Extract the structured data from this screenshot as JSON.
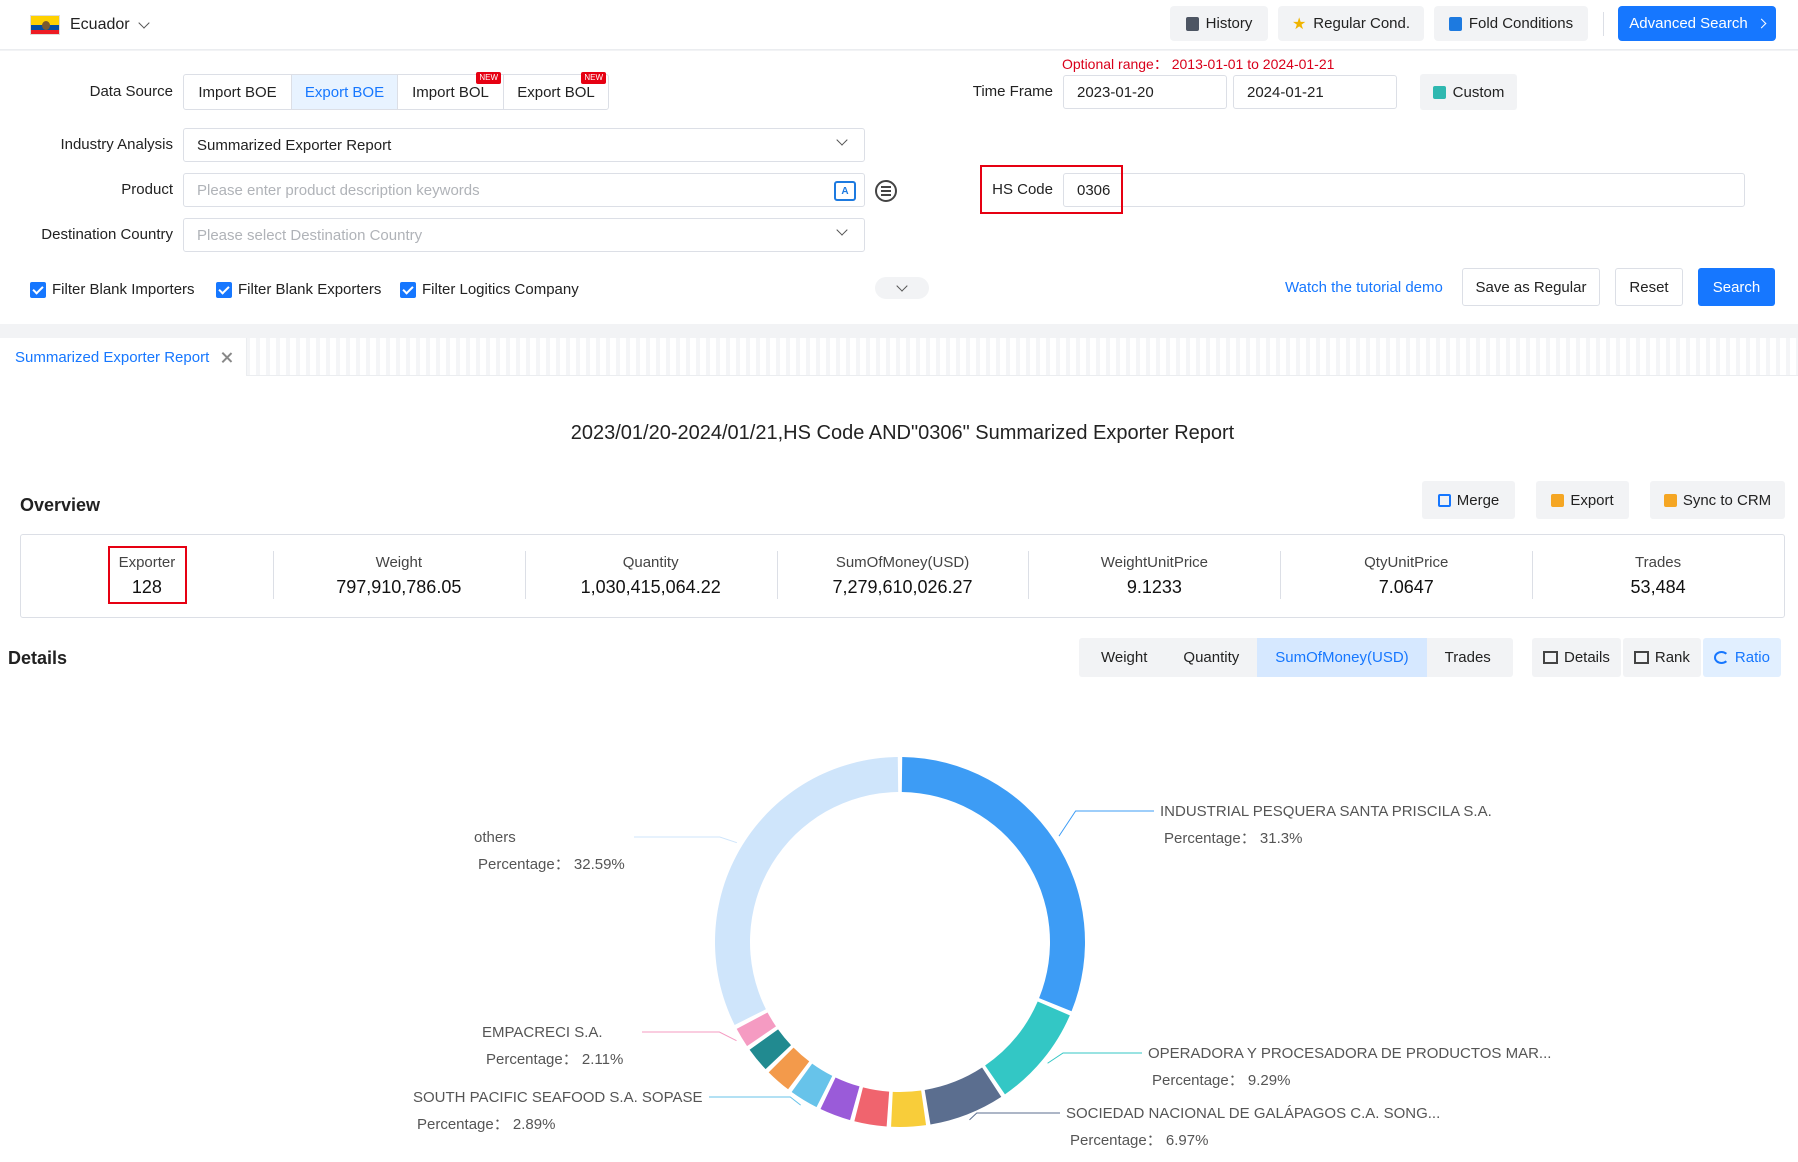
{
  "header": {
    "country": "Ecuador",
    "buttons": {
      "history": "History",
      "regular": "Regular Cond.",
      "fold": "Fold Conditions",
      "advanced": "Advanced Search"
    }
  },
  "search": {
    "data_source_label": "Data Source",
    "data_sources": [
      {
        "label": "Import BOE",
        "active": false,
        "new": false
      },
      {
        "label": "Export BOE",
        "active": true,
        "new": false
      },
      {
        "label": "Import BOL",
        "active": false,
        "new": true
      },
      {
        "label": "Export BOL",
        "active": false,
        "new": true
      }
    ],
    "new_tag": "NEW",
    "optional_range": "Optional range： 2013-01-01 to 2024-01-21",
    "time_frame_label": "Time Frame",
    "date_from": "2023-01-20",
    "date_to": "2024-01-21",
    "custom": "Custom",
    "industry_label": "Industry Analysis",
    "industry_value": "Summarized Exporter Report",
    "product_label": "Product",
    "product_placeholder": "Please enter product description keywords",
    "hs_label": "HS Code",
    "hs_value": "0306",
    "dest_label": "Destination Country",
    "dest_placeholder": "Please select Destination Country",
    "filters": [
      "Filter Blank Importers",
      "Filter Blank Exporters",
      "Filter Logitics Company"
    ],
    "tutorial": "Watch the tutorial demo",
    "save_regular": "Save as Regular",
    "reset": "Reset",
    "search": "Search"
  },
  "report": {
    "tab": "Summarized Exporter Report",
    "title": "2023/01/20-2024/01/21,HS Code AND\"0306\" Summarized Exporter Report",
    "overview": "Overview",
    "actions": {
      "merge": "Merge",
      "export": "Export",
      "sync": "Sync to CRM"
    },
    "stats": [
      {
        "key": "Exporter",
        "value": "128"
      },
      {
        "key": "Weight",
        "value": "797,910,786.05"
      },
      {
        "key": "Quantity",
        "value": "1,030,415,064.22"
      },
      {
        "key": "SumOfMoney(USD)",
        "value": "7,279,610,026.27"
      },
      {
        "key": "WeightUnitPrice",
        "value": "9.1233"
      },
      {
        "key": "QtyUnitPrice",
        "value": "7.0647"
      },
      {
        "key": "Trades",
        "value": "53,484"
      }
    ],
    "details": "Details",
    "metrics": [
      "Weight",
      "Quantity",
      "SumOfMoney(USD)",
      "Trades"
    ],
    "metric_active": 2,
    "views": [
      "Details",
      "Rank",
      "Ratio"
    ],
    "view_active": 2
  },
  "chart_data": {
    "type": "pie",
    "percentage_label": "Percentage：",
    "slices": [
      {
        "name": "INDUSTRIAL PESQUERA SANTA PRISCILA S.A.",
        "value": 31.3,
        "color": "#3d9cf5",
        "labeled": true
      },
      {
        "name": "OPERADORA Y PROCESADORA DE PRODUCTOS MAR...",
        "value": 9.29,
        "color": "#33c7c5",
        "labeled": true
      },
      {
        "name": "SOCIEDAD NACIONAL DE GALÁPAGOS C.A. SONG...",
        "value": 6.97,
        "color": "#5b6e8f",
        "labeled": true
      },
      {
        "name": "",
        "value": 3.4,
        "color": "#f8cd3a",
        "labeled": false
      },
      {
        "name": "",
        "value": 3.2,
        "color": "#f0646e",
        "labeled": false
      },
      {
        "name": "",
        "value": 3.1,
        "color": "#9a5bd9",
        "labeled": false
      },
      {
        "name": "SOUTH PACIFIC SEAFOOD S.A. SOPASE",
        "value": 2.89,
        "color": "#67c3ea",
        "labeled": true
      },
      {
        "name": "",
        "value": 2.6,
        "color": "#f39a4b",
        "labeled": false
      },
      {
        "name": "",
        "value": 2.55,
        "color": "#218a90",
        "labeled": false
      },
      {
        "name": "EMPACRECI S.A.",
        "value": 2.11,
        "color": "#f59bc2",
        "labeled": true
      },
      {
        "name": "others",
        "value": 32.59,
        "color": "#cfe5fb",
        "labeled": true
      }
    ]
  }
}
